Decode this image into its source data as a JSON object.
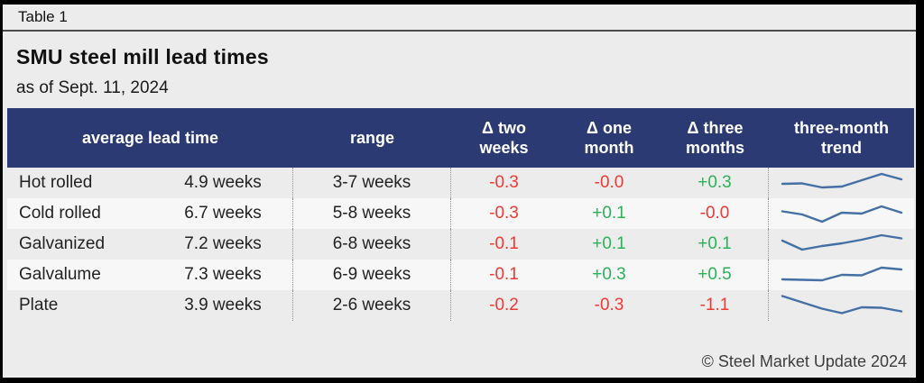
{
  "frame": {
    "table_label": "Table 1"
  },
  "title": "SMU steel mill lead times",
  "subtitle": "as of Sept. 11, 2024",
  "footer": {
    "copyright": "© Steel Market Update 2024"
  },
  "colors": {
    "header_bg": "#2b3a72",
    "negative": "#ee3a34",
    "positive": "#2bb158",
    "sparkline": "#4470a4",
    "page_bg": "#ececec",
    "row_alt_bg": "#f7f7f7"
  },
  "table": {
    "headers": {
      "avg": "average lead time",
      "range": "range",
      "d2w_line1": "Δ two",
      "d2w_line2": "weeks",
      "d1m_line1": "Δ one",
      "d1m_line2": "month",
      "d3m_line1": "Δ three",
      "d3m_line2": "months",
      "trend_line1": "three-month",
      "trend_line2": "trend"
    },
    "rows": [
      {
        "product": "Hot rolled",
        "avg": "4.9 weeks",
        "range": "3-7 weeks",
        "d2w": "-0.3",
        "d1m": "-0.0",
        "d3m": "+0.3"
      },
      {
        "product": "Cold rolled",
        "avg": "6.7 weeks",
        "range": "5-8 weeks",
        "d2w": "-0.3",
        "d1m": "+0.1",
        "d3m": "-0.0"
      },
      {
        "product": "Galvanized",
        "avg": "7.2 weeks",
        "range": "6-8 weeks",
        "d2w": "-0.1",
        "d1m": "+0.1",
        "d3m": "+0.1"
      },
      {
        "product": "Galvalume",
        "avg": "7.3 weeks",
        "range": "6-9 weeks",
        "d2w": "-0.1",
        "d1m": "+0.3",
        "d3m": "+0.5"
      },
      {
        "product": "Plate",
        "avg": "3.9 weeks",
        "range": "2-6 weeks",
        "d2w": "-0.2",
        "d1m": "-0.3",
        "d3m": "-1.1"
      }
    ]
  },
  "chart_data": {
    "type": "table",
    "title": "SMU steel mill lead times",
    "as_of": "Sept. 11, 2024",
    "columns": [
      "product",
      "average lead time",
      "range",
      "Δ two weeks",
      "Δ one month",
      "Δ three months",
      "three-month trend"
    ],
    "rows": [
      {
        "product": "Hot rolled",
        "average_lead_time_weeks": 4.9,
        "range_weeks": "3-7",
        "delta_two_weeks": -0.3,
        "delta_one_month": -0.0,
        "delta_three_months": 0.3
      },
      {
        "product": "Cold rolled",
        "average_lead_time_weeks": 6.7,
        "range_weeks": "5-8",
        "delta_two_weeks": -0.3,
        "delta_one_month": 0.1,
        "delta_three_months": -0.0
      },
      {
        "product": "Galvanized",
        "average_lead_time_weeks": 7.2,
        "range_weeks": "6-8",
        "delta_two_weeks": -0.1,
        "delta_one_month": 0.1,
        "delta_three_months": 0.1
      },
      {
        "product": "Galvalume",
        "average_lead_time_weeks": 7.3,
        "range_weeks": "6-9",
        "delta_two_weeks": -0.1,
        "delta_one_month": 0.3,
        "delta_three_months": 0.5
      },
      {
        "product": "Plate",
        "average_lead_time_weeks": 3.9,
        "range_weeks": "2-6",
        "delta_two_weeks": -0.2,
        "delta_one_month": -0.3,
        "delta_three_months": -1.1
      }
    ],
    "sparklines_hint": "line sparklines, unlabeled relative values, 7 points each, higher = longer lead time",
    "sparklines": [
      {
        "product": "Hot rolled",
        "type": "line",
        "values": [
          14,
          14.5,
          10,
          11,
          18,
          25,
          19
        ]
      },
      {
        "product": "Cold rolled",
        "type": "line",
        "values": [
          17.5,
          14,
          6,
          16,
          15,
          23,
          16
        ]
      },
      {
        "product": "Galvanized",
        "type": "line",
        "values": [
          19,
          9,
          13,
          16,
          20,
          25,
          21.5
        ]
      },
      {
        "product": "Galvalume",
        "type": "line",
        "values": [
          10,
          9.5,
          9,
          15,
          14.5,
          23,
          21
        ]
      },
      {
        "product": "Plate",
        "type": "line",
        "values": [
          25.5,
          18.5,
          11.5,
          6.5,
          13,
          12.5,
          8.5
        ]
      }
    ]
  }
}
